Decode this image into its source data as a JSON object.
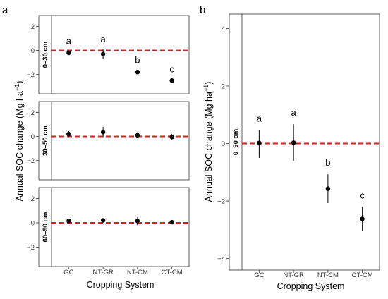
{
  "chart_data": [
    {
      "panel_label": "a",
      "type": "scatter",
      "xlabel": "Cropping System",
      "ylabel": "Annual SOC change (Mg ha",
      "ylabel_sup": "−1",
      "ylabel_close": ")",
      "categories": [
        "GC",
        "NT-GR",
        "NT-CM",
        "CT-CM"
      ],
      "ylim": [
        -3.6,
        2.9
      ],
      "yticks": [
        2,
        0,
        -2
      ],
      "reference_line": {
        "y": 0,
        "style": "dashed",
        "color": "#e41a1c"
      },
      "grid": false,
      "facets": [
        {
          "strip": "0–30 cm",
          "values": [
            -0.2,
            -0.3,
            -1.8,
            -2.5
          ],
          "lower": [
            -0.35,
            -0.7,
            -1.95,
            -2.6
          ],
          "upper": [
            -0.05,
            0.1,
            -1.65,
            -2.4
          ],
          "letters": [
            "a",
            "a",
            "b",
            "c"
          ]
        },
        {
          "strip": "30–50 cm",
          "values": [
            0.2,
            0.35,
            0.1,
            -0.05
          ],
          "lower": [
            -0.05,
            -0.05,
            -0.15,
            -0.3
          ],
          "upper": [
            0.45,
            0.8,
            0.35,
            0.2
          ],
          "letters": []
        },
        {
          "strip": "60–90 cm",
          "values": [
            0.15,
            0.2,
            0.15,
            0.05
          ],
          "lower": [
            0.0,
            0.05,
            -0.2,
            -0.1
          ],
          "upper": [
            0.3,
            0.35,
            0.45,
            0.2
          ],
          "letters": []
        }
      ]
    },
    {
      "panel_label": "b",
      "type": "scatter",
      "xlabel": "Cropping System",
      "ylabel": "Annual SOC change (Mg ha",
      "ylabel_sup": "−1",
      "ylabel_close": ")",
      "categories": [
        "GC",
        "NT-GR",
        "NT-CM",
        "CT-CM"
      ],
      "ylim": [
        -4.4,
        4.5
      ],
      "yticks": [
        4,
        2,
        0,
        -2,
        -4
      ],
      "reference_line": {
        "y": 0,
        "style": "dashed",
        "color": "#e41a1c"
      },
      "grid": false,
      "facets": [
        {
          "strip": "0–90 cm",
          "values": [
            0.02,
            0.03,
            -1.57,
            -2.62
          ],
          "lower": [
            -0.5,
            -0.6,
            -2.07,
            -3.05
          ],
          "upper": [
            0.47,
            0.67,
            -1.07,
            -2.2
          ],
          "letters": [
            "a",
            "a",
            "b",
            "c"
          ]
        }
      ]
    }
  ]
}
